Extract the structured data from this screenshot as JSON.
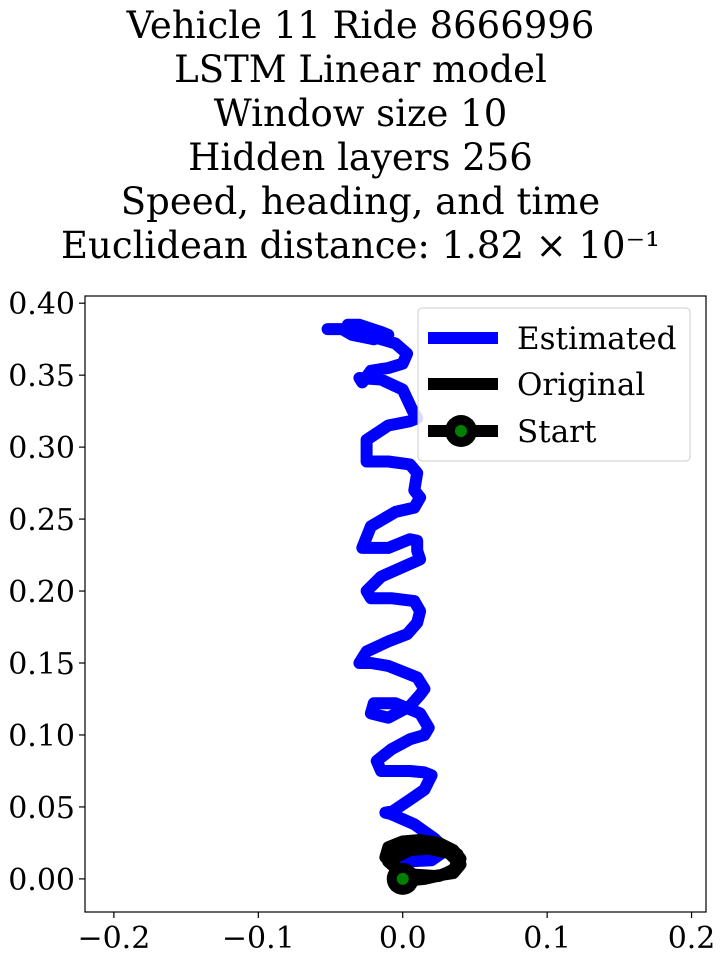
{
  "chart_data": {
    "type": "line",
    "title_lines": [
      "Vehicle 11 Ride 8666996",
      "LSTM Linear model",
      "Window size 10",
      "Hidden layers 256",
      "Speed, heading, and time",
      "Euclidean distance: 1.82 × 10⁻¹"
    ],
    "xlabel": "",
    "ylabel": "",
    "xlim": [
      -0.22,
      0.21
    ],
    "ylim": [
      -0.023,
      0.405
    ],
    "x_ticks": [
      -0.2,
      -0.1,
      0.0,
      0.1,
      0.2
    ],
    "x_tick_labels": [
      "−0.2",
      "−0.1",
      "0.0",
      "0.1",
      "0.2"
    ],
    "y_ticks": [
      0.0,
      0.05,
      0.1,
      0.15,
      0.2,
      0.25,
      0.3,
      0.35,
      0.4
    ],
    "y_tick_labels": [
      "0.00",
      "0.05",
      "0.10",
      "0.15",
      "0.20",
      "0.25",
      "0.30",
      "0.35",
      "0.40"
    ],
    "grid": false,
    "legend_position": "top-right",
    "series": [
      {
        "name": "Estimated",
        "color": "#0000ff",
        "x": [
          0.0,
          0.02,
          0.03,
          0.022,
          0.008,
          -0.008,
          -0.012,
          -0.007,
          0.005,
          0.015,
          0.018,
          0.02,
          0.015,
          0.005,
          -0.015,
          -0.018,
          -0.008,
          0.005,
          0.015,
          0.018,
          0.012,
          -0.005,
          -0.02,
          -0.022,
          -0.01,
          0.005,
          0.012,
          0.015,
          0.01,
          -0.01,
          -0.022,
          -0.03,
          -0.025,
          -0.01,
          0.003,
          0.01,
          0.012,
          0.008,
          -0.008,
          -0.022,
          -0.025,
          -0.015,
          0.003,
          0.012,
          0.01,
          0.01,
          0.005,
          -0.01,
          -0.028,
          -0.022,
          -0.005,
          0.008,
          0.012,
          0.008,
          0.01,
          0.005,
          -0.01,
          -0.025,
          -0.025,
          -0.01,
          0.005,
          0.01,
          0.007,
          0.0,
          -0.015,
          -0.03,
          -0.028,
          -0.022,
          -0.01,
          0.0,
          0.003,
          -0.005,
          -0.015,
          -0.035,
          -0.038,
          -0.03,
          -0.015,
          -0.01,
          -0.02,
          -0.035,
          -0.042,
          -0.052
        ],
        "y": [
          0.012,
          0.013,
          0.02,
          0.028,
          0.038,
          0.045,
          0.046,
          0.047,
          0.055,
          0.062,
          0.068,
          0.072,
          0.074,
          0.075,
          0.075,
          0.082,
          0.09,
          0.097,
          0.1,
          0.105,
          0.115,
          0.122,
          0.122,
          0.115,
          0.112,
          0.12,
          0.128,
          0.132,
          0.14,
          0.148,
          0.15,
          0.15,
          0.158,
          0.165,
          0.17,
          0.178,
          0.186,
          0.193,
          0.195,
          0.195,
          0.2,
          0.21,
          0.218,
          0.222,
          0.228,
          0.235,
          0.236,
          0.23,
          0.23,
          0.245,
          0.255,
          0.258,
          0.265,
          0.27,
          0.282,
          0.288,
          0.29,
          0.29,
          0.305,
          0.315,
          0.318,
          0.32,
          0.325,
          0.34,
          0.347,
          0.348,
          0.345,
          0.353,
          0.355,
          0.358,
          0.365,
          0.372,
          0.375,
          0.382,
          0.385,
          0.385,
          0.38,
          0.378,
          0.375,
          0.378,
          0.382,
          0.382
        ]
      },
      {
        "name": "Original",
        "color": "#000000",
        "x": [
          0.0,
          0.005,
          0.015,
          0.028,
          0.038,
          0.04,
          0.035,
          0.025,
          0.012,
          0.0,
          -0.01,
          -0.012,
          -0.005,
          0.008,
          0.022,
          0.035,
          0.04,
          0.038,
          0.028,
          0.015,
          0.003,
          -0.008,
          -0.01,
          -0.002,
          0.01,
          0.025,
          0.035,
          0.038,
          0.032,
          0.018,
          0.005,
          -0.005
        ],
        "y": [
          0.0,
          -0.001,
          0.0,
          0.003,
          0.008,
          0.014,
          0.02,
          0.025,
          0.027,
          0.026,
          0.022,
          0.015,
          0.008,
          0.003,
          0.002,
          0.004,
          0.01,
          0.017,
          0.022,
          0.025,
          0.024,
          0.019,
          0.012,
          0.005,
          0.002,
          0.002,
          0.006,
          0.012,
          0.018,
          0.021,
          0.02,
          0.015
        ]
      }
    ],
    "start_point": {
      "name": "Start",
      "x": 0.0,
      "y": 0.0,
      "marker_color": "#008000",
      "edge_color": "#000000"
    },
    "legend_labels": [
      "Estimated",
      "Original",
      "Start"
    ]
  }
}
